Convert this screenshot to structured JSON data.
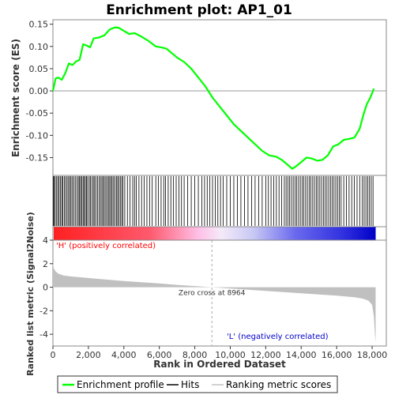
{
  "chart_data": {
    "type": "line",
    "title": "Enrichment plot: AP1_01",
    "top_panel": {
      "ylabel": "Enrichment score (ES)",
      "ylim": [
        -0.19,
        0.16
      ],
      "yticks": [
        0.15,
        0.1,
        0.05,
        0.0,
        -0.05,
        -0.1,
        -0.15
      ],
      "ytick_labels": [
        "0.15",
        "0.10",
        "0.05",
        "0.00",
        "-0.05",
        "-0.10",
        "-0.15"
      ],
      "series": [
        {
          "name": "Enrichment profile",
          "color": "#00ff00",
          "x": [
            0,
            150,
            300,
            500,
            700,
            900,
            1100,
            1300,
            1500,
            1700,
            1900,
            2100,
            2300,
            2600,
            2900,
            3200,
            3500,
            3700,
            4000,
            4300,
            4600,
            5000,
            5400,
            5800,
            6100,
            6400,
            6700,
            7000,
            7400,
            7800,
            8200,
            8600,
            9000,
            9400,
            9800,
            10200,
            10600,
            11000,
            11400,
            11800,
            12200,
            12600,
            12900,
            13200,
            13500,
            13700,
            14000,
            14300,
            14600,
            14900,
            15200,
            15500,
            15800,
            16100,
            16400,
            16700,
            17000,
            17300,
            17500,
            17700,
            17900,
            18100
          ],
          "y": [
            0.0,
            0.028,
            0.03,
            0.025,
            0.04,
            0.062,
            0.058,
            0.066,
            0.07,
            0.105,
            0.102,
            0.098,
            0.118,
            0.12,
            0.125,
            0.138,
            0.143,
            0.142,
            0.135,
            0.128,
            0.13,
            0.122,
            0.112,
            0.1,
            0.098,
            0.095,
            0.085,
            0.075,
            0.065,
            0.05,
            0.03,
            0.01,
            -0.015,
            -0.035,
            -0.055,
            -0.075,
            -0.09,
            -0.105,
            -0.12,
            -0.135,
            -0.145,
            -0.148,
            -0.155,
            -0.165,
            -0.175,
            -0.17,
            -0.16,
            -0.15,
            -0.152,
            -0.157,
            -0.155,
            -0.145,
            -0.125,
            -0.12,
            -0.11,
            -0.108,
            -0.105,
            -0.085,
            -0.055,
            -0.03,
            -0.015,
            0.005
          ]
        }
      ]
    },
    "hits_panel": {
      "series_name": "Hits",
      "color": "#000000",
      "hit_positions": [
        20,
        70,
        130,
        210,
        280,
        350,
        430,
        500,
        560,
        640,
        720,
        800,
        880,
        950,
        1020,
        1100,
        1180,
        1260,
        1350,
        1430,
        1500,
        1560,
        1620,
        1700,
        1760,
        1830,
        1890,
        1960,
        2050,
        2120,
        2200,
        2280,
        2350,
        2430,
        2520,
        2600,
        2680,
        2760,
        2830,
        2900,
        2980,
        3060,
        3130,
        3200,
        3270,
        3340,
        3420,
        3500,
        3580,
        3650,
        3720,
        3800,
        3880,
        3950,
        4050,
        4200,
        4350,
        4500,
        4600,
        4700,
        4850,
        5000,
        5150,
        5300,
        5450,
        5600,
        5800,
        5950,
        6100,
        6250,
        6350,
        6500,
        6650,
        6800,
        6950,
        7100,
        7250,
        7400,
        7600,
        7800,
        8000,
        8200,
        8400,
        8550,
        8700,
        8850,
        9000,
        9150,
        9300,
        9450,
        9600,
        9800,
        10000,
        10200,
        10400,
        10600,
        10800,
        11000,
        11200,
        11400,
        11600,
        11800,
        12000,
        12150,
        12300,
        12450,
        12600,
        12750,
        12900,
        13050,
        13150,
        13250,
        13350,
        13450,
        13550,
        13650,
        13750,
        13850,
        13950,
        14050,
        14150,
        14250,
        14350,
        14450,
        14550,
        14650,
        14750,
        14850,
        14950,
        15050,
        15150,
        15250,
        15350,
        15450,
        15550,
        15650,
        15750,
        15850,
        15950,
        16050,
        16150,
        16250,
        16400,
        16550,
        16700,
        16850,
        17000,
        17150,
        17300,
        17450,
        17550,
        17650,
        17750,
        17850,
        17950,
        18050
      ]
    },
    "metric_panel": {
      "ylabel": "Ranked list metric (Signal2Noise)",
      "xlabel": "Rank in Ordered Dataset",
      "ylim": [
        -5,
        4
      ],
      "yticks": [
        4,
        2,
        0,
        -2,
        -4
      ],
      "ytick_labels": [
        "4",
        "2",
        "0",
        "-2",
        "-4"
      ],
      "series_name": "Ranking metric scores",
      "color": "#c0c0c0",
      "x": [
        0,
        50,
        150,
        300,
        600,
        1000,
        1500,
        2000,
        3000,
        4000,
        5000,
        6000,
        7000,
        8000,
        8964,
        10000,
        11000,
        12000,
        13000,
        14000,
        15000,
        16000,
        17000,
        17500,
        17800,
        18000,
        18100,
        18150,
        18200
      ],
      "y": [
        2.0,
        1.6,
        1.35,
        1.15,
        1.0,
        0.92,
        0.85,
        0.78,
        0.65,
        0.53,
        0.42,
        0.32,
        0.2,
        0.1,
        0.0,
        -0.12,
        -0.22,
        -0.32,
        -0.42,
        -0.52,
        -0.62,
        -0.72,
        -0.85,
        -0.98,
        -1.15,
        -1.5,
        -2.5,
        -3.8,
        -4.7
      ],
      "zero_cross": 8964,
      "zero_cross_label": "Zero cross at 8964",
      "annotation_pos": "'H' (positively correlated)",
      "annotation_neg": "'L' (negatively correlated)",
      "annotation_pos_color": "#ff0000",
      "annotation_neg_color": "#0000cc"
    },
    "xaxis": {
      "xlim": [
        0,
        18800
      ],
      "xticks": [
        0,
        2000,
        4000,
        6000,
        8000,
        10000,
        12000,
        14000,
        16000,
        18000
      ],
      "xtick_labels": [
        "0",
        "2,000",
        "4,000",
        "6,000",
        "8,000",
        "10,000",
        "12,000",
        "14,000",
        "16,000",
        "18,000"
      ],
      "n_genes": 18200
    },
    "legend": {
      "placement": "bottom",
      "entries": [
        {
          "label": "Enrichment profile",
          "color": "#00ff00"
        },
        {
          "label": "Hits",
          "color": "#000000"
        },
        {
          "label": "Ranking metric scores",
          "color": "#c0c0c0"
        }
      ]
    }
  }
}
